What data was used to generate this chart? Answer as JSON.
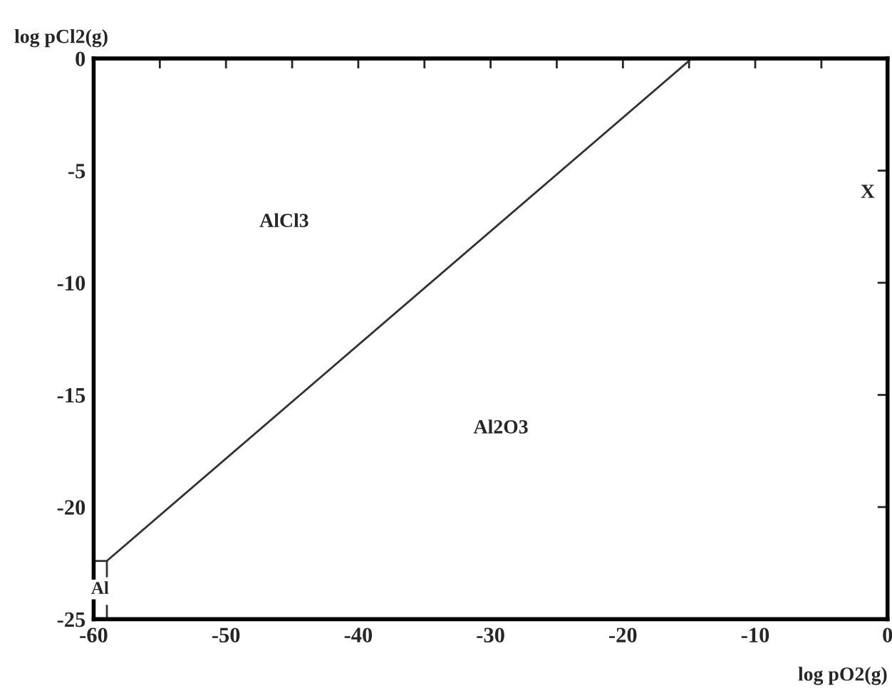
{
  "chart_data": {
    "type": "line",
    "xlabel": "log pO2(g)",
    "ylabel": "log pCl2(g)",
    "xlim": [
      -60,
      0
    ],
    "ylim": [
      -25,
      0
    ],
    "xticks": [
      -60,
      {
        "value": -55,
        "label": null
      },
      -50,
      {
        "value": -45,
        "label": null
      },
      -40,
      {
        "value": -35,
        "label": null
      },
      -30,
      {
        "value": -25,
        "label": null
      },
      -20,
      {
        "value": -15,
        "label": null
      },
      -10,
      {
        "value": -5,
        "label": null
      },
      0
    ],
    "yticks": [
      -25,
      -20,
      -15,
      -10,
      -5,
      0
    ],
    "grid": false,
    "legend": false,
    "marker": "none",
    "line_style": "solid",
    "series": [
      {
        "color": "#333333",
        "x": [
          -59,
          -14.8
        ],
        "values": [
          -22.4,
          0
        ]
      },
      {
        "color": "#333333",
        "x": [
          -60,
          -59
        ],
        "values": [
          -22.4,
          -22.4
        ]
      },
      {
        "color": "#333333",
        "x": [
          -59,
          -59
        ],
        "values": [
          -22.4,
          -23.1
        ]
      },
      {
        "color": "#333333",
        "x": [
          -59,
          -59
        ],
        "values": [
          -24.4,
          -25
        ]
      }
    ],
    "annotations": [
      "AlCl3",
      "Al2O3",
      "Al",
      "X"
    ]
  }
}
